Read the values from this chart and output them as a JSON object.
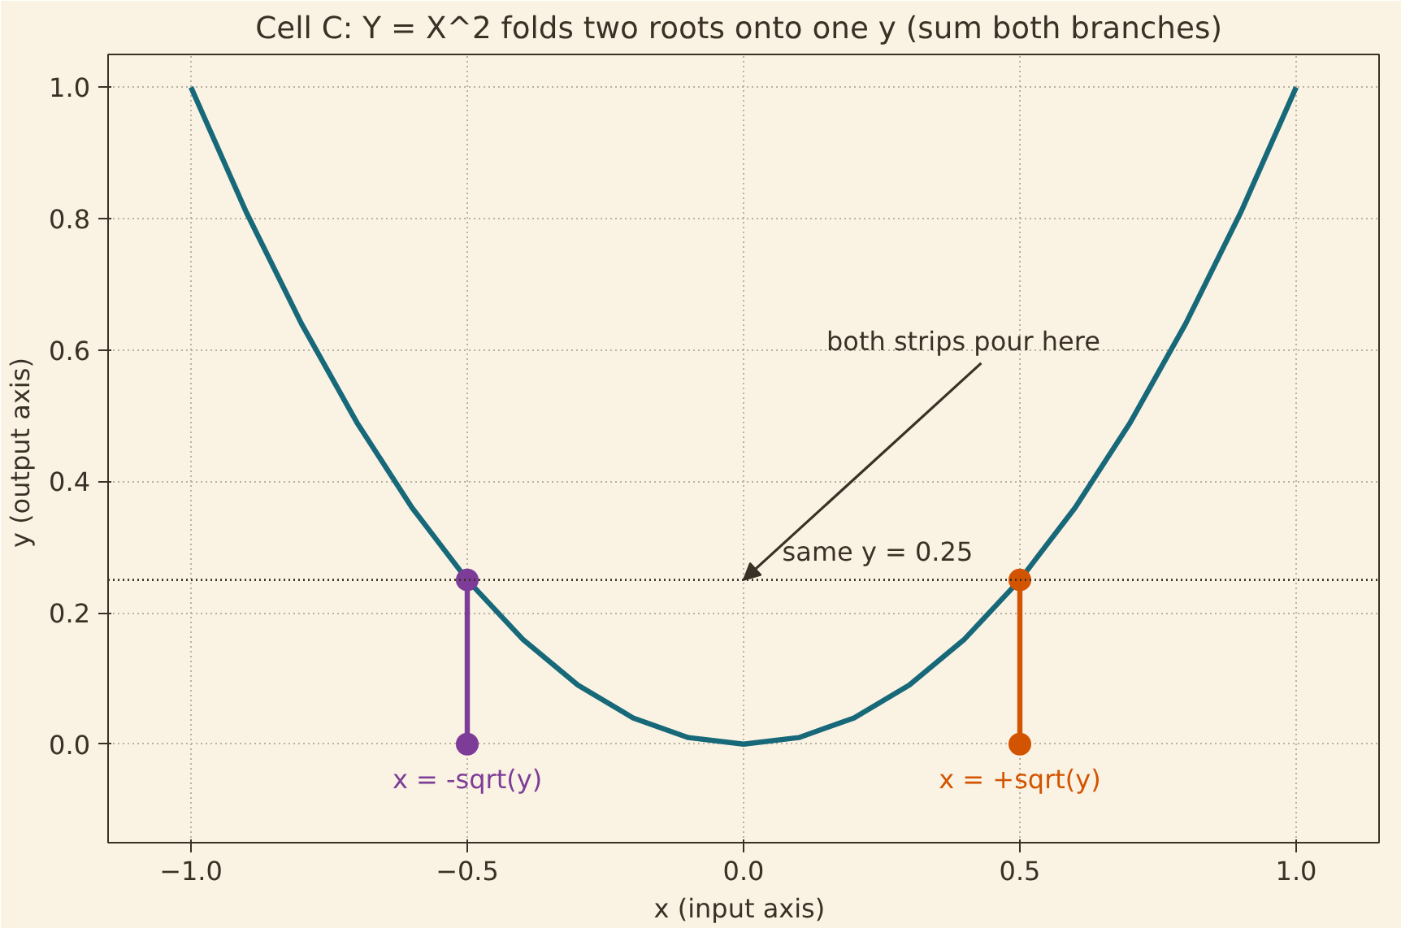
{
  "chart_data": {
    "type": "line",
    "title": "Cell C: Y = X^2 folds two roots onto one y  (sum both branches)",
    "xlabel": "x  (input axis)",
    "ylabel": "y  (output axis)",
    "xlim": [
      -1.15,
      1.15
    ],
    "ylim": [
      -0.15,
      1.05
    ],
    "xticks": [
      {
        "value": -1,
        "label": "−1.0"
      },
      {
        "value": -0.5,
        "label": "−0.5"
      },
      {
        "value": 0,
        "label": "0.0"
      },
      {
        "value": 0.5,
        "label": "0.5"
      },
      {
        "value": 1,
        "label": "1.0"
      }
    ],
    "yticks": [
      {
        "value": 0,
        "label": "0.0"
      },
      {
        "value": 0.2,
        "label": "0.2"
      },
      {
        "value": 0.4,
        "label": "0.4"
      },
      {
        "value": 0.6,
        "label": "0.6"
      },
      {
        "value": 0.8,
        "label": "0.8"
      },
      {
        "value": 1,
        "label": "1.0"
      }
    ],
    "grid": true,
    "marker": "none",
    "series": [
      {
        "color": "#17697a",
        "x": [
          -1,
          -0.9,
          -0.8,
          -0.7,
          -0.6,
          -0.5,
          -0.4,
          -0.3,
          -0.2,
          -0.1,
          0,
          0.1,
          0.2,
          0.3,
          0.4,
          0.5,
          0.6,
          0.7,
          0.8,
          0.9,
          1
        ],
        "values": [
          1,
          0.81,
          0.64,
          0.49,
          0.36,
          0.25,
          0.16,
          0.09,
          0.04,
          0.01,
          0,
          0.01,
          0.04,
          0.09,
          0.16,
          0.25,
          0.36,
          0.49,
          0.64,
          0.81,
          1
        ]
      },
      {
        "name": "x = -sqrt(y)",
        "color": "#7d3c98",
        "marker": "circle",
        "x": [
          -0.5,
          -0.5
        ],
        "values": [
          0,
          0.25
        ]
      },
      {
        "name": "x = +sqrt(y)",
        "color": "#d35400",
        "marker": "circle",
        "x": [
          0.5,
          0.5
        ],
        "values": [
          0,
          0.25
        ]
      }
    ],
    "ref_lines": [
      {
        "axis": "y",
        "value": 0.25,
        "label": "same y = 0.25",
        "color": "#3b3026",
        "line_style": "dotted"
      }
    ],
    "annotations": [
      {
        "text": "both strips pour here",
        "x": 0,
        "y": 0.25
      }
    ]
  }
}
